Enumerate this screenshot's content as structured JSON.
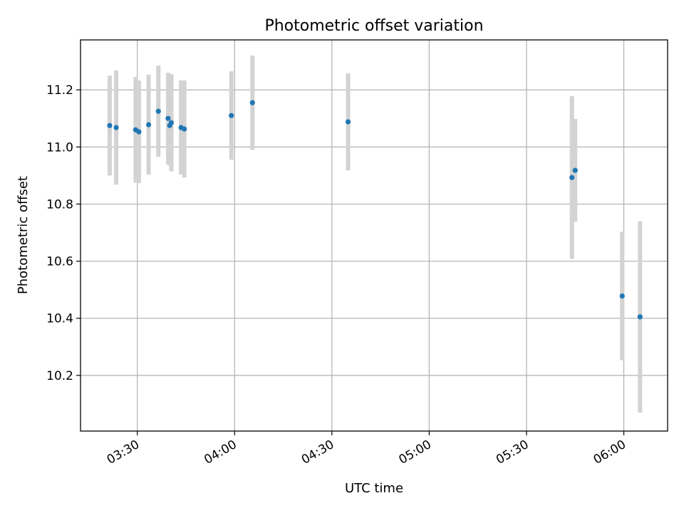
{
  "chart_data": {
    "type": "scatter",
    "title": "Photometric offset variation",
    "xlabel": "UTC time",
    "ylabel": "Photometric offset",
    "x_tick_labels": [
      "03:30",
      "04:00",
      "04:30",
      "05:00",
      "05:30",
      "06:00"
    ],
    "y_tick_labels": [
      "10.2",
      "10.4",
      "10.6",
      "10.8",
      "11.0",
      "11.2"
    ],
    "xlim": [
      "03:12:30",
      "06:13:30"
    ],
    "ylim": [
      10.005,
      11.375
    ],
    "grid": true,
    "colors": {
      "points": "#1f77b4",
      "error_bars": "#d3d3d3"
    },
    "points": [
      {
        "t": "03:21:30",
        "y": 11.075,
        "yerr": 0.175
      },
      {
        "t": "03:23:30",
        "y": 11.068,
        "yerr": 0.2
      },
      {
        "t": "03:29:30",
        "y": 11.06,
        "yerr": 0.185
      },
      {
        "t": "03:30:30",
        "y": 11.053,
        "yerr": 0.18
      },
      {
        "t": "03:33:30",
        "y": 11.078,
        "yerr": 0.175
      },
      {
        "t": "03:36:30",
        "y": 11.125,
        "yerr": 0.16
      },
      {
        "t": "03:39:30",
        "y": 11.1,
        "yerr": 0.16
      },
      {
        "t": "03:40:00",
        "y": 11.075,
        "yerr": 0.14
      },
      {
        "t": "03:40:30",
        "y": 11.085,
        "yerr": 0.17
      },
      {
        "t": "03:43:30",
        "y": 11.068,
        "yerr": 0.165
      },
      {
        "t": "03:44:30",
        "y": 11.063,
        "yerr": 0.17
      },
      {
        "t": "03:59:00",
        "y": 11.11,
        "yerr": 0.155
      },
      {
        "t": "04:05:30",
        "y": 11.155,
        "yerr": 0.165
      },
      {
        "t": "04:35:00",
        "y": 11.088,
        "yerr": 0.17
      },
      {
        "t": "05:44:00",
        "y": 10.893,
        "yerr": 0.285
      },
      {
        "t": "05:45:00",
        "y": 10.918,
        "yerr": 0.18
      },
      {
        "t": "05:59:30",
        "y": 10.478,
        "yerr": 0.225
      },
      {
        "t": "06:05:00",
        "y": 10.405,
        "yerr": 0.335
      }
    ]
  }
}
